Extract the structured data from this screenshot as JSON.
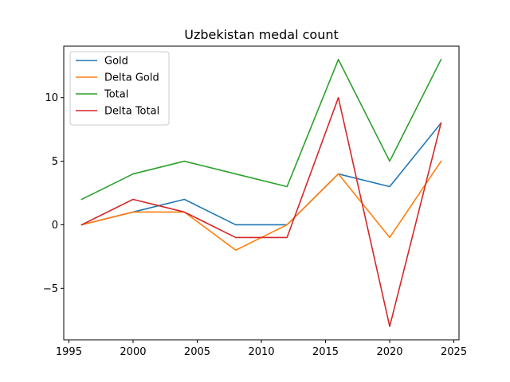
{
  "chart_data": {
    "type": "line",
    "title": "Uzbekistan medal count",
    "xlabel": "",
    "ylabel": "",
    "xlim": [
      1994.6,
      2025.4
    ],
    "ylim": [
      -9.05,
      14.05
    ],
    "x_ticks": [
      1995,
      2000,
      2005,
      2010,
      2015,
      2020,
      2025
    ],
    "y_ticks": [
      -5,
      0,
      5,
      10
    ],
    "x_tick_labels": [
      "1995",
      "2000",
      "2005",
      "2010",
      "2015",
      "2020",
      "2025"
    ],
    "y_tick_labels": [
      "−5",
      "0",
      "5",
      "10"
    ],
    "grid": false,
    "legend_position": "upper-left",
    "series": [
      {
        "name": "Gold",
        "color": "#1f77b4",
        "x": [
          1996,
          2000,
          2004,
          2008,
          2012,
          2016,
          2020,
          2024
        ],
        "y": [
          0,
          1,
          2,
          0,
          0,
          4,
          3,
          8
        ]
      },
      {
        "name": "Delta Gold",
        "color": "#ff7f0e",
        "x": [
          1996,
          2000,
          2004,
          2008,
          2012,
          2016,
          2020,
          2024
        ],
        "y": [
          0,
          1,
          1,
          -2,
          0,
          4,
          -1,
          5
        ]
      },
      {
        "name": "Total",
        "color": "#2ca02c",
        "x": [
          1996,
          2000,
          2004,
          2008,
          2012,
          2016,
          2020,
          2024
        ],
        "y": [
          2,
          4,
          5,
          4,
          3,
          13,
          5,
          13
        ]
      },
      {
        "name": "Delta Total",
        "color": "#d62728",
        "x": [
          1996,
          2000,
          2004,
          2008,
          2012,
          2016,
          2020,
          2024
        ],
        "y": [
          0,
          2,
          1,
          -1,
          -1,
          10,
          -8,
          8
        ]
      }
    ]
  }
}
